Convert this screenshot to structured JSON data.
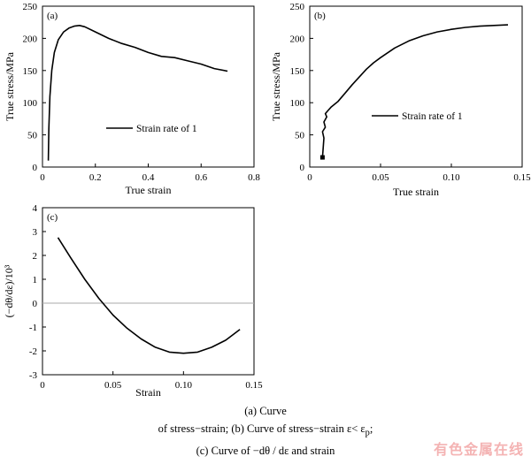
{
  "chart_data": [
    {
      "panel": "(a)",
      "type": "line",
      "xlabel": "True strain",
      "ylabel": "True stress/MPa",
      "xlim": [
        0,
        0.8
      ],
      "ylim": [
        0,
        250
      ],
      "xticks": [
        "0",
        "0.2",
        "0.4",
        "0.6",
        "0.8"
      ],
      "yticks": [
        "0",
        "50",
        "100",
        "150",
        "200",
        "250"
      ],
      "legend": "right-middle",
      "series": [
        {
          "name": "Strain rate of 1",
          "x": [
            0.022,
            0.024,
            0.028,
            0.035,
            0.045,
            0.06,
            0.08,
            0.1,
            0.12,
            0.14,
            0.16,
            0.2,
            0.25,
            0.3,
            0.35,
            0.4,
            0.45,
            0.5,
            0.55,
            0.6,
            0.65,
            0.7
          ],
          "y": [
            10,
            60,
            110,
            150,
            178,
            198,
            210,
            216,
            219,
            220,
            218,
            210,
            200,
            192,
            186,
            178,
            172,
            170,
            165,
            160,
            153,
            149
          ]
        }
      ]
    },
    {
      "panel": "(b)",
      "type": "line",
      "xlabel": "True strain",
      "ylabel": "True stress/MPa",
      "xlim": [
        0,
        0.15
      ],
      "ylim": [
        0,
        250
      ],
      "xticks": [
        "0",
        "0.05",
        "0.10",
        "0.15"
      ],
      "yticks": [
        "0",
        "50",
        "100",
        "150",
        "200",
        "250"
      ],
      "legend": "right-middle",
      "series": [
        {
          "name": "Strain rate of 1",
          "x": [
            0.009,
            0.0095,
            0.01,
            0.009,
            0.011,
            0.01,
            0.012,
            0.011,
            0.013,
            0.015,
            0.02,
            0.025,
            0.03,
            0.035,
            0.04,
            0.045,
            0.05,
            0.06,
            0.07,
            0.08,
            0.09,
            0.1,
            0.11,
            0.12,
            0.13,
            0.14
          ],
          "y": [
            15,
            30,
            45,
            55,
            62,
            70,
            78,
            83,
            88,
            93,
            102,
            115,
            128,
            140,
            152,
            162,
            170,
            185,
            196,
            204,
            210,
            214,
            217,
            219,
            220,
            221
          ]
        }
      ]
    },
    {
      "panel": "(c)",
      "type": "line",
      "xlabel": "Strain",
      "ylabel": "(−dθ/dε)/10³",
      "xlim": [
        0,
        0.15
      ],
      "ylim": [
        -3,
        4
      ],
      "xticks": [
        "0",
        "0.05",
        "0.10",
        "0.15"
      ],
      "yticks": [
        "-3",
        "-2",
        "-1",
        "0",
        "1",
        "2",
        "3",
        "4"
      ],
      "reference_line_y": 0,
      "series": [
        {
          "x": [
            0.011,
            0.02,
            0.03,
            0.04,
            0.05,
            0.06,
            0.07,
            0.08,
            0.09,
            0.1,
            0.11,
            0.12,
            0.13,
            0.14
          ],
          "y": [
            2.75,
            1.9,
            1.0,
            0.2,
            -0.5,
            -1.05,
            -1.5,
            -1.85,
            -2.05,
            -2.1,
            -2.05,
            -1.85,
            -1.55,
            -1.1
          ]
        }
      ]
    }
  ],
  "caption": {
    "line1": "(a) Curve",
    "line2": "of stress−strain; (b) Curve of stress−strain ε< ε",
    "line2_sub": "p",
    "line2_tail": ";",
    "line3": "(c) Curve of  −dθ / dε   and strain"
  },
  "watermark": "有色金属在线",
  "colors": {
    "line": "#000000",
    "zero_line": "#aaaaaa",
    "watermark": "#f4b3b3"
  }
}
